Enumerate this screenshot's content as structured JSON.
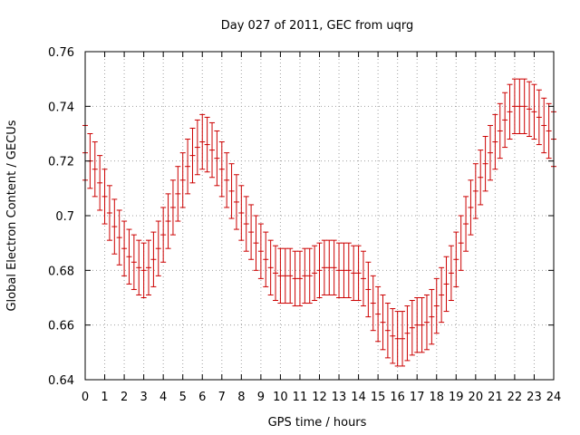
{
  "chart_data": {
    "type": "line",
    "title": "Day 027 of 2011, GEC from uqrg",
    "xlabel": "GPS time / hours",
    "ylabel": "Global Electron Content / GECUs",
    "xlim": [
      0,
      24
    ],
    "ylim": [
      0.64,
      0.76
    ],
    "grid": true,
    "xticks": [
      "0",
      "1",
      "2",
      "3",
      "4",
      "5",
      "6",
      "7",
      "8",
      "9",
      "10",
      "11",
      "12",
      "13",
      "14",
      "15",
      "16",
      "17",
      "18",
      "19",
      "20",
      "21",
      "22",
      "23",
      "24"
    ],
    "yticks": [
      "0.64",
      "0.66",
      "0.68",
      "0.7",
      "0.72",
      "0.74",
      "0.76"
    ],
    "series": [
      {
        "color": "#cc0000",
        "error_bars": true,
        "error": 0.01,
        "x": [
          0,
          0.25,
          0.5,
          0.75,
          1,
          1.25,
          1.5,
          1.75,
          2,
          2.25,
          2.5,
          2.75,
          3,
          3.25,
          3.5,
          3.75,
          4,
          4.25,
          4.5,
          4.75,
          5,
          5.25,
          5.5,
          5.75,
          6,
          6.25,
          6.5,
          6.75,
          7,
          7.25,
          7.5,
          7.75,
          8,
          8.25,
          8.5,
          8.75,
          9,
          9.25,
          9.5,
          9.75,
          10,
          10.25,
          10.5,
          10.75,
          11,
          11.25,
          11.5,
          11.75,
          12,
          12.25,
          12.5,
          12.75,
          13,
          13.25,
          13.5,
          13.75,
          14,
          14.25,
          14.5,
          14.75,
          15,
          15.25,
          15.5,
          15.75,
          16,
          16.25,
          16.5,
          16.75,
          17,
          17.25,
          17.5,
          17.75,
          18,
          18.25,
          18.5,
          18.75,
          19,
          19.25,
          19.5,
          19.75,
          20,
          20.25,
          20.5,
          20.75,
          21,
          21.25,
          21.5,
          21.75,
          22,
          22.25,
          22.5,
          22.75,
          23,
          23.25,
          23.5,
          23.75,
          24
        ],
        "y": [
          0.723,
          0.72,
          0.717,
          0.712,
          0.707,
          0.701,
          0.696,
          0.692,
          0.688,
          0.685,
          0.683,
          0.681,
          0.68,
          0.681,
          0.684,
          0.688,
          0.693,
          0.698,
          0.703,
          0.708,
          0.713,
          0.718,
          0.722,
          0.725,
          0.727,
          0.726,
          0.724,
          0.721,
          0.717,
          0.713,
          0.709,
          0.705,
          0.701,
          0.697,
          0.694,
          0.69,
          0.687,
          0.684,
          0.681,
          0.679,
          0.678,
          0.678,
          0.678,
          0.677,
          0.677,
          0.678,
          0.678,
          0.679,
          0.68,
          0.681,
          0.681,
          0.681,
          0.68,
          0.68,
          0.68,
          0.679,
          0.679,
          0.677,
          0.673,
          0.668,
          0.664,
          0.661,
          0.658,
          0.656,
          0.655,
          0.655,
          0.657,
          0.659,
          0.66,
          0.66,
          0.661,
          0.663,
          0.667,
          0.671,
          0.675,
          0.679,
          0.684,
          0.69,
          0.697,
          0.703,
          0.709,
          0.714,
          0.719,
          0.723,
          0.727,
          0.731,
          0.735,
          0.738,
          0.74,
          0.74,
          0.74,
          0.739,
          0.738,
          0.736,
          0.733,
          0.731,
          0.728
        ]
      }
    ]
  }
}
